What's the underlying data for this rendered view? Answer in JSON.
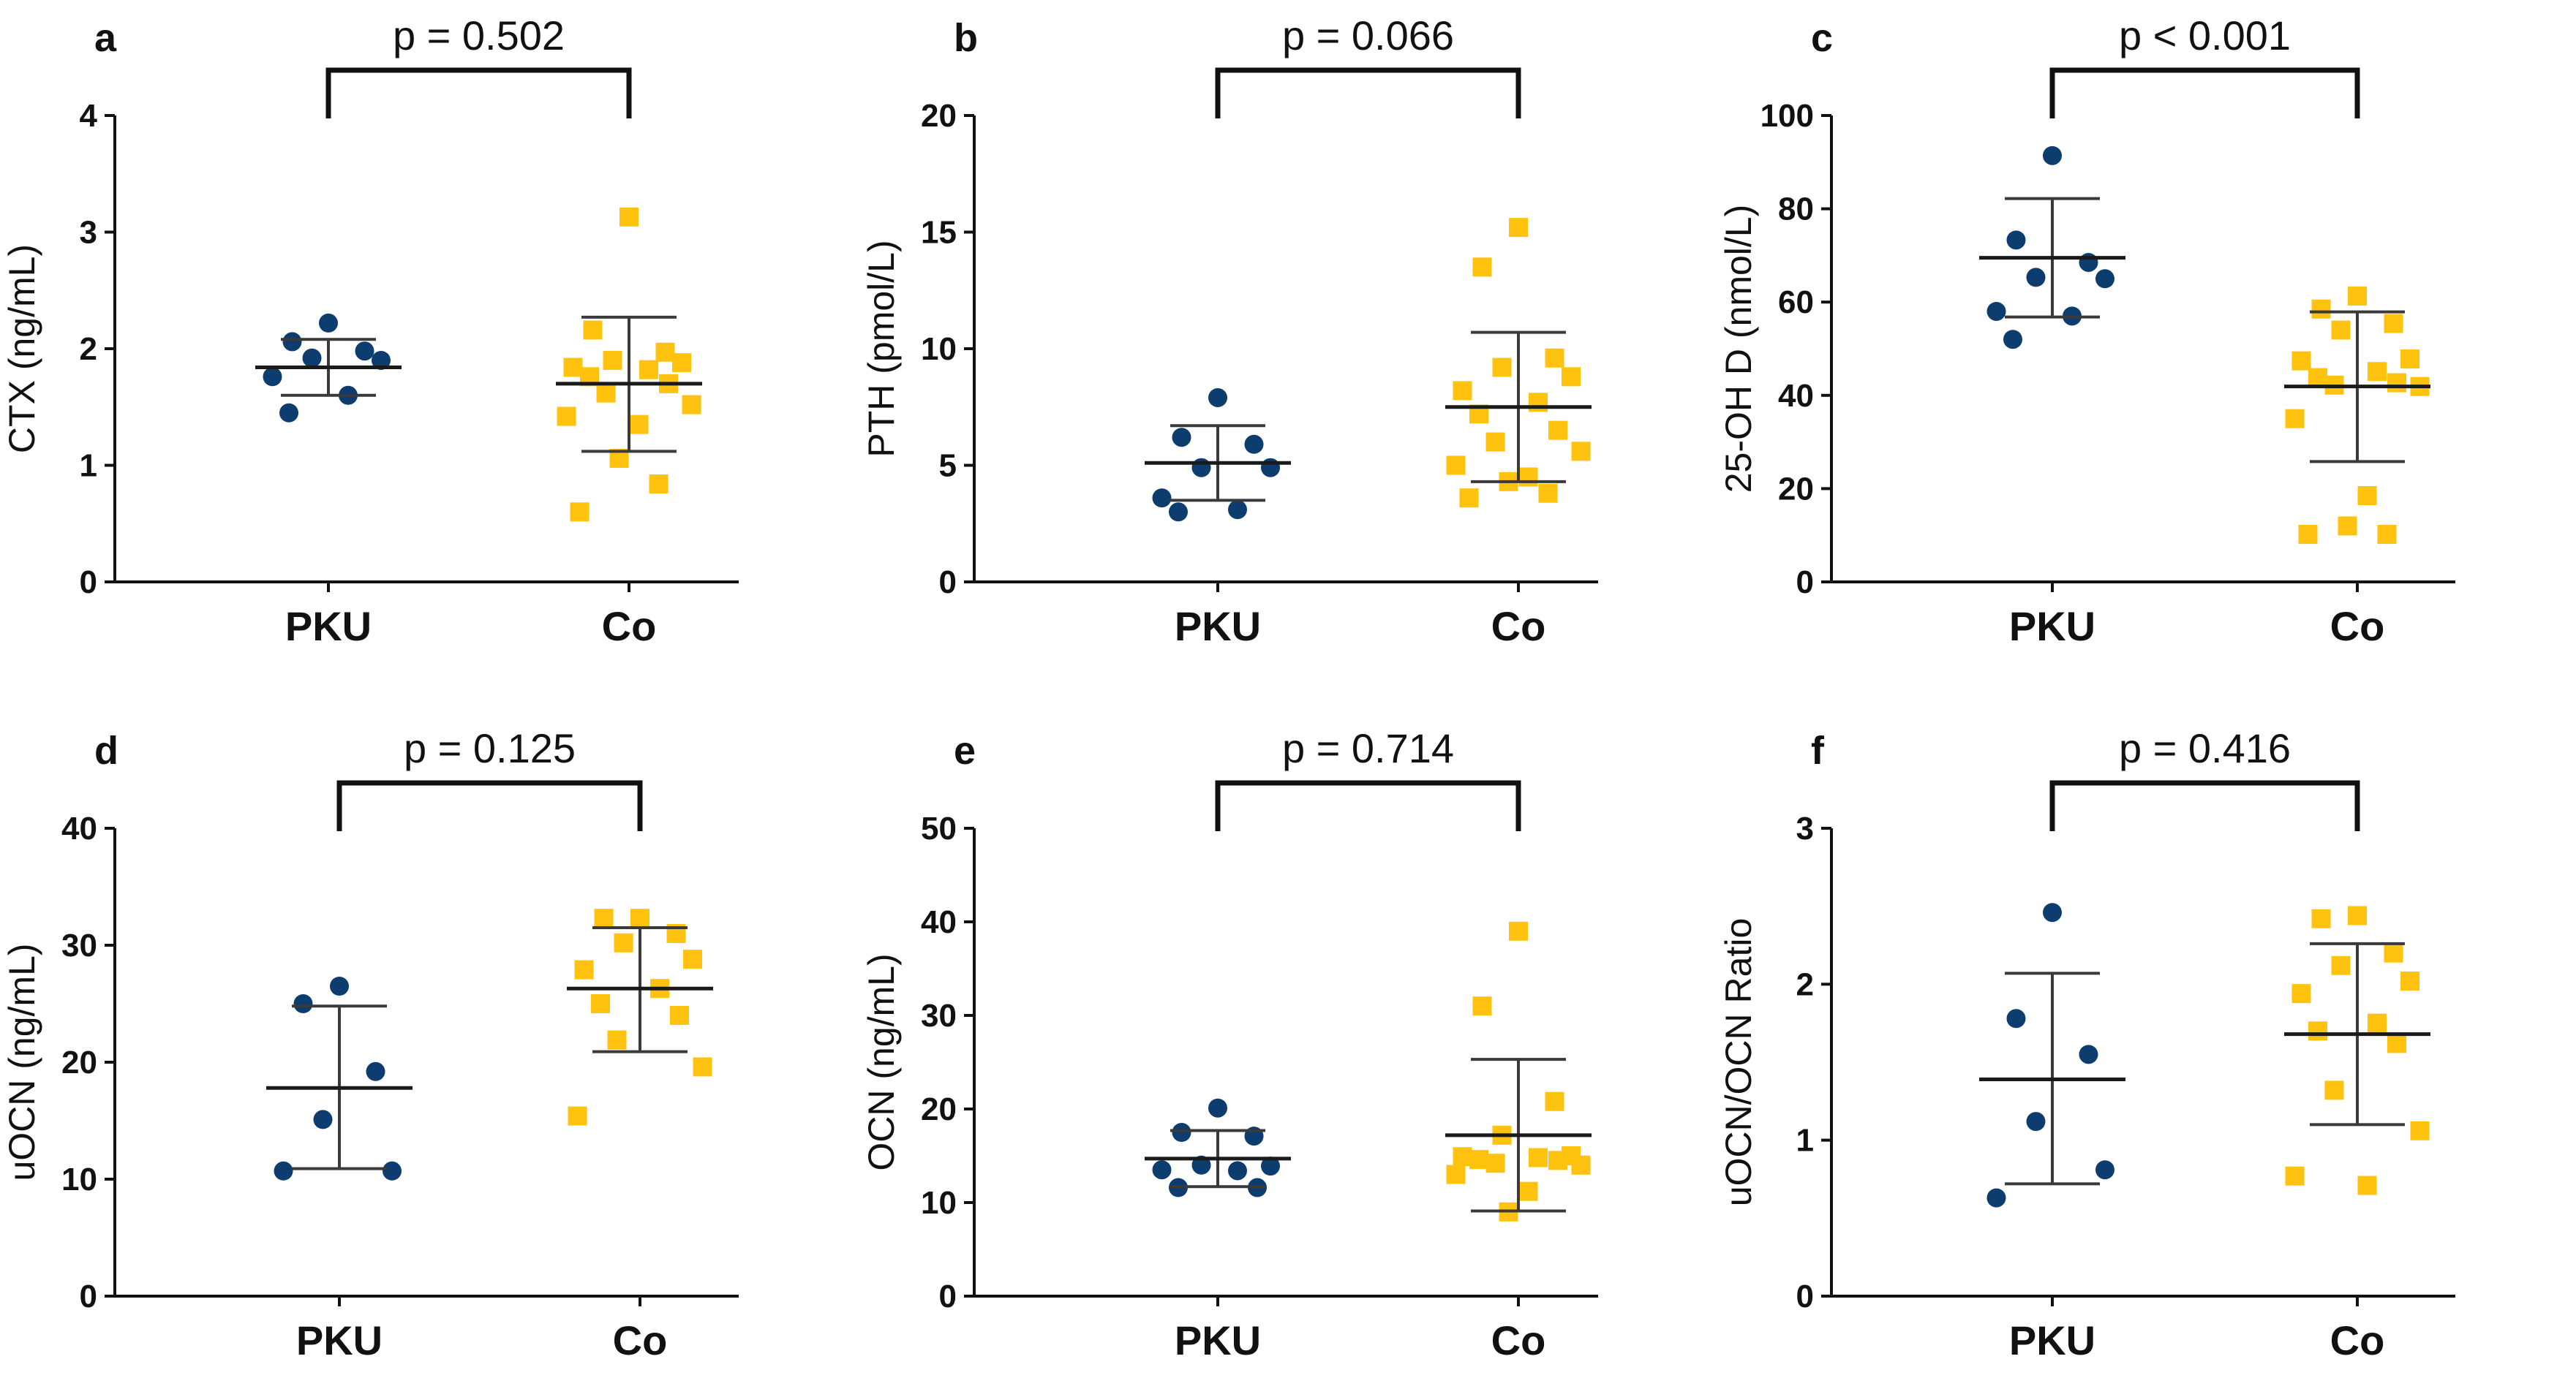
{
  "colors": {
    "PKU": "#0d3c6e",
    "Co": "#ffc20e",
    "axis": "#111111",
    "errorbar": "#3a3a3a"
  },
  "chart_data": [
    {
      "type": "scatter",
      "panel_label": "a",
      "p_value": "p = 0.502",
      "ylabel": "CTX (ng/mL)",
      "ylim": [
        0,
        4
      ],
      "yticks": [
        0,
        1,
        2,
        3,
        4
      ],
      "categories": [
        "PKU",
        "Co"
      ],
      "series": [
        {
          "name": "PKU",
          "mean": 1.84,
          "sd_low": 1.6,
          "sd_high": 2.08,
          "values": [
            2.22,
            2.06,
            1.98,
            1.92,
            1.9,
            1.76,
            1.6,
            1.45
          ]
        },
        {
          "name": "Co",
          "mean": 1.7,
          "sd_low": 1.12,
          "sd_high": 2.27,
          "values": [
            3.13,
            2.16,
            1.97,
            1.9,
            1.88,
            1.84,
            1.82,
            1.76,
            1.7,
            1.62,
            1.52,
            1.42,
            1.35,
            1.06,
            0.84,
            0.6
          ]
        }
      ]
    },
    {
      "type": "scatter",
      "panel_label": "b",
      "p_value": "p = 0.066",
      "ylabel": "PTH (pmol/L)",
      "ylim": [
        0,
        20
      ],
      "yticks": [
        0,
        5,
        10,
        15,
        20
      ],
      "categories": [
        "PKU",
        "Co"
      ],
      "series": [
        {
          "name": "PKU",
          "mean": 5.1,
          "sd_low": 3.5,
          "sd_high": 6.7,
          "values": [
            7.9,
            6.2,
            5.9,
            4.9,
            4.9,
            3.6,
            3.1,
            3.0
          ]
        },
        {
          "name": "Co",
          "mean": 7.5,
          "sd_low": 4.3,
          "sd_high": 10.7,
          "values": [
            15.2,
            13.5,
            9.6,
            9.2,
            8.8,
            8.2,
            7.7,
            7.2,
            6.5,
            6.0,
            5.6,
            5.0,
            4.5,
            4.3,
            3.8,
            3.6
          ]
        }
      ]
    },
    {
      "type": "scatter",
      "panel_label": "c",
      "p_value": "p < 0.001",
      "ylabel": "25-OH D (nmol/L)",
      "ylim": [
        0,
        100
      ],
      "yticks": [
        0,
        20,
        40,
        60,
        80,
        100
      ],
      "categories": [
        "PKU",
        "Co"
      ],
      "series": [
        {
          "name": "PKU",
          "mean": 69.5,
          "sd_low": 56.8,
          "sd_high": 82.2,
          "values": [
            91.4,
            73.3,
            68.5,
            65.3,
            65.0,
            58.0,
            57.0,
            52.0
          ]
        },
        {
          "name": "Co",
          "mean": 41.9,
          "sd_low": 25.8,
          "sd_high": 57.9,
          "values": [
            61.3,
            58.5,
            55.4,
            54.0,
            47.8,
            47.4,
            45.1,
            43.8,
            42.7,
            42.2,
            41.9,
            35.0,
            18.5,
            12.0,
            10.2,
            10.2
          ]
        }
      ]
    },
    {
      "type": "scatter",
      "panel_label": "d",
      "p_value": "p = 0.125",
      "ylabel": "uOCN (ng/mL)",
      "ylim": [
        0,
        40
      ],
      "yticks": [
        0,
        10,
        20,
        30,
        40
      ],
      "categories": [
        "PKU",
        "Co"
      ],
      "series": [
        {
          "name": "PKU",
          "mean": 17.8,
          "sd_low": 10.9,
          "sd_high": 24.8,
          "values": [
            26.5,
            25.0,
            19.2,
            15.1,
            10.7,
            10.7
          ]
        },
        {
          "name": "Co",
          "mean": 26.3,
          "sd_low": 20.9,
          "sd_high": 31.5,
          "values": [
            32.3,
            32.3,
            31.0,
            30.2,
            28.8,
            27.9,
            26.3,
            25.0,
            24.0,
            21.9,
            19.6,
            15.4
          ]
        }
      ]
    },
    {
      "type": "scatter",
      "panel_label": "e",
      "p_value": "p = 0.714",
      "ylabel": "OCN (ng/mL)",
      "ylim": [
        0,
        50
      ],
      "yticks": [
        0,
        10,
        20,
        30,
        40,
        50
      ],
      "categories": [
        "PKU",
        "Co"
      ],
      "series": [
        {
          "name": "PKU",
          "mean": 14.7,
          "sd_low": 11.7,
          "sd_high": 17.7,
          "values": [
            20.1,
            17.5,
            17.1,
            14.0,
            13.9,
            13.5,
            13.4,
            11.6,
            11.6
          ]
        },
        {
          "name": "Co",
          "mean": 17.2,
          "sd_low": 9.1,
          "sd_high": 25.3,
          "values": [
            39.0,
            31.0,
            20.8,
            17.2,
            15.0,
            14.9,
            14.8,
            14.6,
            14.5,
            14.2,
            14.0,
            13.0,
            11.2,
            9.0
          ]
        }
      ]
    },
    {
      "type": "scatter",
      "panel_label": "f",
      "p_value": "p = 0.416",
      "ylabel": "uOCN/OCN Ratio",
      "ylim": [
        0,
        3
      ],
      "yticks": [
        0,
        1,
        2,
        3
      ],
      "categories": [
        "PKU",
        "Co"
      ],
      "series": [
        {
          "name": "PKU",
          "mean": 1.39,
          "sd_low": 0.72,
          "sd_high": 2.07,
          "values": [
            2.46,
            1.78,
            1.55,
            1.12,
            0.81,
            0.63
          ]
        },
        {
          "name": "Co",
          "mean": 1.68,
          "sd_low": 1.1,
          "sd_high": 2.26,
          "values": [
            2.44,
            2.42,
            2.2,
            2.12,
            2.02,
            1.94,
            1.75,
            1.7,
            1.62,
            1.32,
            1.06,
            0.77,
            0.71
          ]
        }
      ]
    }
  ]
}
